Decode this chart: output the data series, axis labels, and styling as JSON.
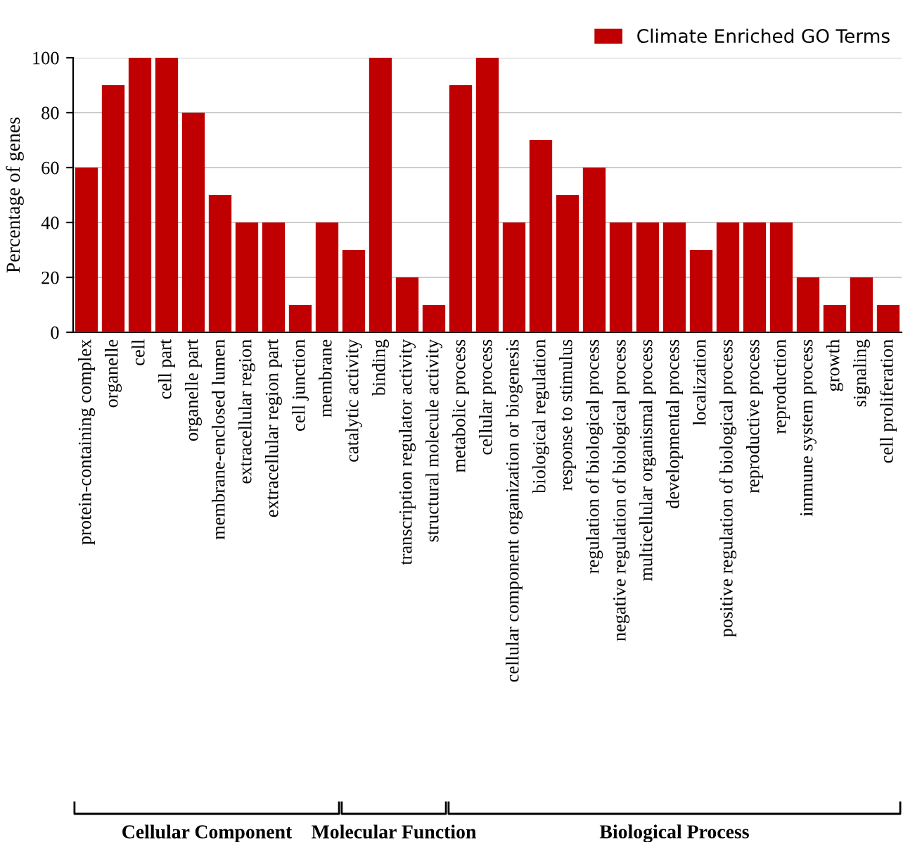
{
  "chart_data": {
    "type": "bar",
    "ylabel": "Percentage of genes",
    "categories": [
      "protein-containing complex",
      "organelle",
      "cell",
      "cell part",
      "organelle part",
      "membrane-enclosed lumen",
      "extracellular region",
      "extracellular region part",
      "cell junction",
      "membrane",
      "catalytic activity",
      "binding",
      "transcription regulator activity",
      "structural molecule activity",
      "metabolic process",
      "cellular process",
      "cellular component organization or biogenesis",
      "biological regulation",
      "response to stimulus",
      "regulation of biological process",
      "negative regulation of biological process",
      "multicellular organismal process",
      "developmental process",
      "localization",
      "positive regulation of biological process",
      "reproductive process",
      "reproduction",
      "immune system process",
      "growth",
      "signaling",
      "cell proliferation"
    ],
    "series": [
      {
        "name": "Climate Enriched GO Terms",
        "color": "#c00000",
        "values": [
          60,
          90,
          100,
          100,
          80,
          50,
          40,
          40,
          10,
          40,
          30,
          100,
          20,
          10,
          90,
          100,
          40,
          70,
          50,
          60,
          40,
          40,
          40,
          30,
          40,
          40,
          40,
          20,
          10,
          20,
          10
        ]
      }
    ],
    "ylim": [
      0,
      100
    ],
    "yticks": [
      0,
      20,
      40,
      60,
      80,
      100
    ],
    "grid": "y",
    "legend": "top right",
    "annotations": [
      "Cellular Component",
      "Molecular Function",
      "Biological Process"
    ]
  }
}
